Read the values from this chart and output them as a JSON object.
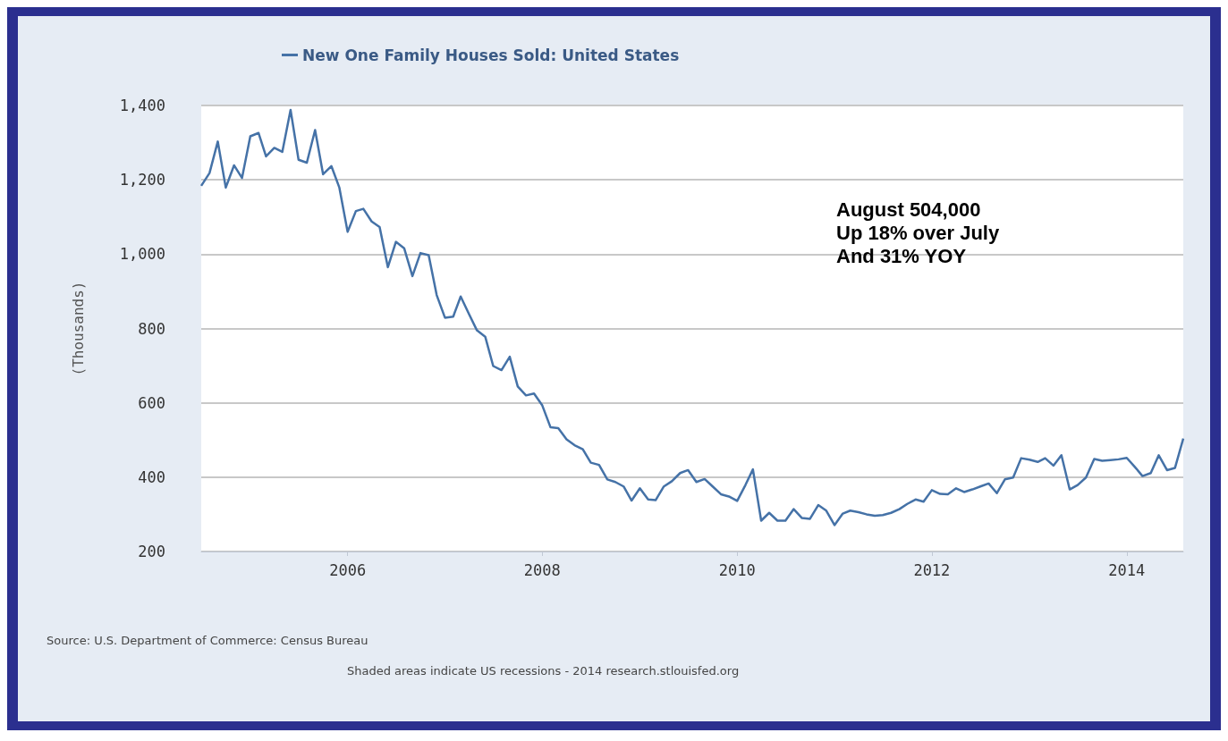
{
  "chart_data": {
    "type": "line",
    "ylabel": "(Thousands)",
    "legend": "top left",
    "grid": "y",
    "x": [
      "2004-07",
      "2004-08",
      "2004-09",
      "2004-10",
      "2004-11",
      "2004-12",
      "2005-01",
      "2005-02",
      "2005-03",
      "2005-04",
      "2005-05",
      "2005-06",
      "2005-07",
      "2005-08",
      "2005-09",
      "2005-10",
      "2005-11",
      "2005-12",
      "2006-01",
      "2006-02",
      "2006-03",
      "2006-04",
      "2006-05",
      "2006-06",
      "2006-07",
      "2006-08",
      "2006-09",
      "2006-10",
      "2006-11",
      "2006-12",
      "2007-01",
      "2007-02",
      "2007-03",
      "2007-04",
      "2007-05",
      "2007-06",
      "2007-07",
      "2007-08",
      "2007-09",
      "2007-10",
      "2007-11",
      "2007-12",
      "2008-01",
      "2008-02",
      "2008-03",
      "2008-04",
      "2008-05",
      "2008-06",
      "2008-07",
      "2008-08",
      "2008-09",
      "2008-10",
      "2008-11",
      "2008-12",
      "2009-01",
      "2009-02",
      "2009-03",
      "2009-04",
      "2009-05",
      "2009-06",
      "2009-07",
      "2009-08",
      "2009-09",
      "2009-10",
      "2009-11",
      "2009-12",
      "2010-01",
      "2010-02",
      "2010-03",
      "2010-04",
      "2010-05",
      "2010-06",
      "2010-07",
      "2010-08",
      "2010-09",
      "2010-10",
      "2010-11",
      "2010-12",
      "2011-01",
      "2011-02",
      "2011-03",
      "2011-04",
      "2011-05",
      "2011-06",
      "2011-07",
      "2011-08",
      "2011-09",
      "2011-10",
      "2011-11",
      "2011-12",
      "2012-01",
      "2012-02",
      "2012-03",
      "2012-04",
      "2012-05",
      "2012-06",
      "2012-07",
      "2012-08",
      "2012-09",
      "2012-10",
      "2012-11",
      "2012-12",
      "2013-01",
      "2013-02",
      "2013-03",
      "2013-04",
      "2013-05",
      "2013-06",
      "2013-07",
      "2013-08",
      "2013-09",
      "2013-10",
      "2013-11",
      "2013-12",
      "2014-01",
      "2014-02",
      "2014-03",
      "2014-04",
      "2014-05",
      "2014-06",
      "2014-07",
      "2014-08"
    ],
    "series": [
      {
        "name": "New One Family Houses Sold: United States",
        "color": "#4572a7",
        "values": [
          1184,
          1218,
          1303,
          1179,
          1239,
          1205,
          1317,
          1326,
          1263,
          1286,
          1275,
          1388,
          1254,
          1246,
          1334,
          1215,
          1237,
          1179,
          1060,
          1116,
          1122,
          1088,
          1073,
          965,
          1033,
          1016,
          941,
          1003,
          997,
          890,
          829,
          832,
          886,
          839,
          795,
          778,
          699,
          688,
          724,
          644,
          620,
          625,
          593,
          534,
          532,
          502,
          486,
          475,
          439,
          433,
          394,
          387,
          375,
          337,
          370,
          340,
          338,
          375,
          389,
          411,
          419,
          387,
          395,
          375,
          354,
          348,
          336,
          379,
          421,
          283,
          304,
          283,
          283,
          314,
          290,
          288,
          325,
          310,
          271,
          302,
          310,
          306,
          300,
          296,
          298,
          304,
          314,
          328,
          340,
          334,
          365,
          355,
          354,
          370,
          360,
          367,
          375,
          383,
          357,
          394,
          399,
          451,
          447,
          441,
          451,
          431,
          459,
          367,
          379,
          399,
          449,
          444,
          446,
          448,
          452,
          427,
          403,
          411,
          459,
          419,
          425,
          504
        ]
      }
    ],
    "xlim": [
      "2004-07",
      "2014-08"
    ],
    "xticks": [
      "2006",
      "2008",
      "2010",
      "2012",
      "2014"
    ],
    "ylim": [
      200,
      1400
    ],
    "yticks": [
      200,
      400,
      600,
      800,
      {
        "value": 1000,
        "label": "1,000"
      },
      {
        "value": 1200,
        "label": "1,200"
      },
      {
        "value": 1400,
        "label": "1,400"
      }
    ],
    "annotations": [
      "August 504,000",
      "Up 18% over July",
      "And 31% YOY",
      "Source: U.S. Department of Commerce: Census Bureau",
      "Shaded areas indicate US recessions - 2014 research.stlouisfed.org"
    ]
  }
}
